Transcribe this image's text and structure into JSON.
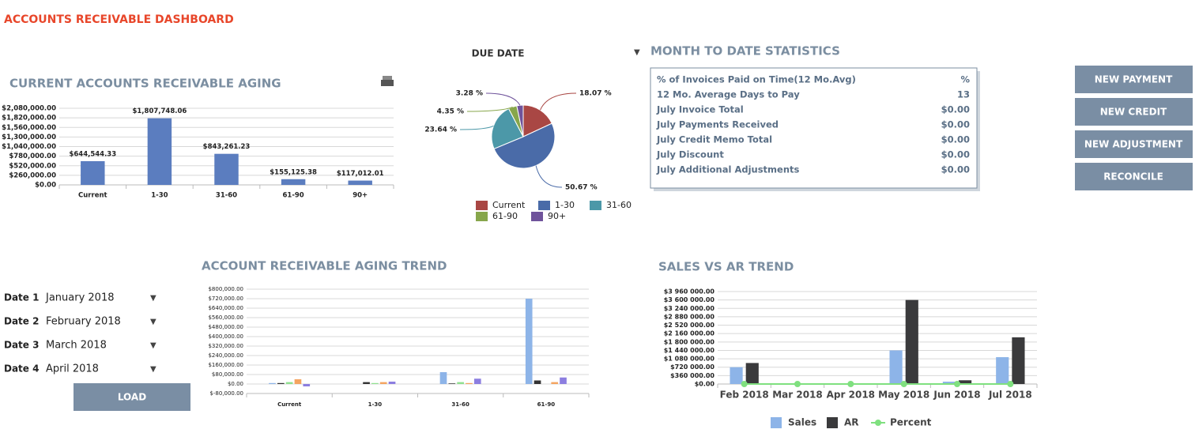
{
  "header": {
    "title": "ACCOUNTS RECEIVABLE DASHBOARD"
  },
  "stats": {
    "title": "MONTH TO DATE STATISTICS",
    "rows": [
      [
        "% of Invoices Paid on Time(12 Mo.Avg)",
        "%"
      ],
      [
        "12 Mo. Average Days to Pay",
        "13"
      ],
      [
        "July Invoice Total",
        "$0.00"
      ],
      [
        "July Payments Received",
        "$0.00"
      ],
      [
        "July Credit Memo Total",
        "$0.00"
      ],
      [
        "July Discount",
        "$0.00"
      ],
      [
        "July Additional Adjustments",
        "$0.00"
      ]
    ]
  },
  "buttons": [
    "NEW PAYMENT",
    "NEW CREDIT",
    "NEW ADJUSTMENT",
    "RECONCILE"
  ],
  "dates": [
    {
      "label": "Date 1",
      "value": "January 2018"
    },
    {
      "label": "Date 2",
      "value": "February 2018"
    },
    {
      "label": "Date 3",
      "value": "March 2018"
    },
    {
      "label": "Date 4",
      "value": "April 2018"
    }
  ],
  "load": "LOAD",
  "chart_data": [
    {
      "type": "bar",
      "title": "CURRENT ACCOUNTS RECEIVABLE AGING",
      "categories": [
        "Current",
        "1-30",
        "31-60",
        "61-90",
        "90+"
      ],
      "values": [
        644544.33,
        1807748.06,
        843261.23,
        155125.38,
        117012.01
      ],
      "value_labels": [
        "$644,544.33",
        "$1,807,748.06",
        "$843,261.23",
        "$155,125.38",
        "$117,012.01"
      ],
      "color": "#5b7dbf",
      "ylim": [
        0,
        2080000
      ],
      "yticks": [
        {
          "value": 0,
          "label": "$0.00"
        },
        {
          "value": 260000,
          "label": "$260,000.00"
        },
        {
          "value": 520000,
          "label": "$520,000.00"
        },
        {
          "value": 780000,
          "label": "$780,000.00"
        },
        {
          "value": 1040000,
          "label": "$1,040,000.00"
        },
        {
          "value": 1300000,
          "label": "$1,300,000.00"
        },
        {
          "value": 1560000,
          "label": "$1,560,000.00"
        },
        {
          "value": 1820000,
          "label": "$1,820,000.00"
        },
        {
          "value": 2080000,
          "label": "$2,080,000.00"
        }
      ],
      "grid": true
    },
    {
      "type": "pie",
      "title": "DUE DATE",
      "categories": [
        "Current",
        "1-30",
        "31-60",
        "61-90",
        "90+"
      ],
      "values": [
        18.07,
        50.67,
        23.64,
        4.35,
        3.28
      ],
      "value_labels": [
        "18.07 %",
        "50.67 %",
        "23.64 %",
        "4.35 %",
        "3.28 %"
      ],
      "colors": [
        "#a94744",
        "#4a6ba8",
        "#4c98a8",
        "#87a64b",
        "#6f539b"
      ],
      "legend": "bottom"
    },
    {
      "type": "bar",
      "title": "ACCOUNT RECEIVABLE AGING TREND",
      "categories": [
        "Current",
        "1-30",
        "31-60",
        "61-90"
      ],
      "series": [
        {
          "color": "#8db4e8",
          "values": [
            8000,
            0,
            100000,
            720000
          ]
        },
        {
          "color": "#333333",
          "values": [
            8000,
            16000,
            5000,
            30000
          ]
        },
        {
          "color": "#90e090",
          "values": [
            16000,
            8000,
            16000,
            0
          ]
        },
        {
          "color": "#f4a460",
          "values": [
            40000,
            16000,
            8000,
            16000
          ]
        },
        {
          "color": "#8c7ee0",
          "values": [
            -20000,
            20000,
            45000,
            55000
          ]
        }
      ],
      "ylim": [
        -80000,
        800000
      ],
      "yticks": [
        {
          "value": -80000,
          "label": "$-80,000.00"
        },
        {
          "value": 0,
          "label": "$0.00"
        },
        {
          "value": 80000,
          "label": "$80,000.00"
        },
        {
          "value": 160000,
          "label": "$160,000.00"
        },
        {
          "value": 240000,
          "label": "$240,000.00"
        },
        {
          "value": 320000,
          "label": "$320,000.00"
        },
        {
          "value": 400000,
          "label": "$400,000.00"
        },
        {
          "value": 480000,
          "label": "$480,000.00"
        },
        {
          "value": 560000,
          "label": "$560,000.00"
        },
        {
          "value": 640000,
          "label": "$640,000.00"
        },
        {
          "value": 720000,
          "label": "$720,000.00"
        },
        {
          "value": 800000,
          "label": "$800,000.00"
        }
      ],
      "grid": true
    },
    {
      "type": "bar",
      "title": "SALES VS AR TREND",
      "categories": [
        "Feb 2018",
        "Mar 2018",
        "Apr 2018",
        "May 2018",
        "Jun 2018",
        "Jul 2018"
      ],
      "series": [
        {
          "name": "Sales",
          "color": "#8db4e8",
          "values": [
            720000,
            0,
            0,
            1440000,
            100000,
            1150000
          ]
        },
        {
          "name": "AR",
          "color": "#3a3a3c",
          "values": [
            900000,
            0,
            0,
            3600000,
            160000,
            2000000
          ]
        },
        {
          "name": "Percent",
          "type": "line",
          "color": "#7fe07f",
          "values": [
            0,
            0,
            0,
            0,
            0,
            0
          ]
        }
      ],
      "ylim": [
        0,
        3960000
      ],
      "yticks": [
        {
          "value": 0,
          "label": "$0.00"
        },
        {
          "value": 360000,
          "label": "$360 000.00"
        },
        {
          "value": 720000,
          "label": "$720 000.00"
        },
        {
          "value": 1080000,
          "label": "$1 080 000.00"
        },
        {
          "value": 1440000,
          "label": "$1 440 000.00"
        },
        {
          "value": 1800000,
          "label": "$1 800 000.00"
        },
        {
          "value": 2160000,
          "label": "$2 160 000.00"
        },
        {
          "value": 2520000,
          "label": "$2 520 000.00"
        },
        {
          "value": 2880000,
          "label": "$2 880 000.00"
        },
        {
          "value": 3240000,
          "label": "$3 240 000.00"
        },
        {
          "value": 3600000,
          "label": "$3 600 000.00"
        },
        {
          "value": 3960000,
          "label": "$3 960 000.00"
        }
      ],
      "grid": true,
      "legend": "bottom"
    }
  ]
}
